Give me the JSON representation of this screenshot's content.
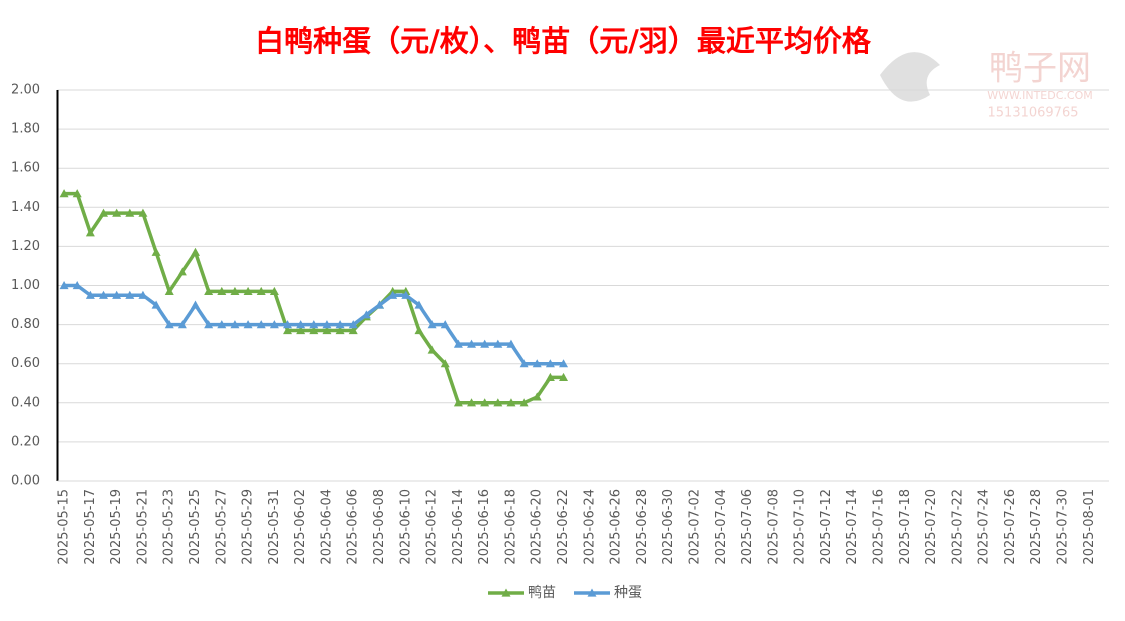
{
  "chart_data": {
    "type": "line",
    "title": "白鸭种蛋（元/枚）、鸭苗（元/羽）最近平均价格",
    "watermark": {
      "name": "鸭子网",
      "site": "WWW.INTEDC.COM",
      "phone": "15131069765"
    },
    "categories": [
      "2025-05-15",
      null,
      "2025-05-17",
      null,
      "2025-05-19",
      null,
      "2025-05-21",
      null,
      "2025-05-23",
      null,
      "2025-05-25",
      null,
      "2025-05-27",
      null,
      "2025-05-29",
      null,
      "2025-05-31",
      null,
      "2025-06-02",
      null,
      "2025-06-04",
      null,
      "2025-06-06",
      null,
      "2025-06-08",
      null,
      "2025-06-10",
      null,
      "2025-06-12",
      null,
      "2025-06-14",
      null,
      "2025-06-16",
      null,
      "2025-06-18",
      null,
      "2025-06-20",
      null,
      "2025-06-22",
      null,
      "2025-06-24",
      null,
      "2025-06-26",
      null,
      "2025-06-28",
      null,
      "2025-06-30",
      null,
      "2025-07-02",
      null,
      "2025-07-04",
      null,
      "2025-07-06",
      null,
      "2025-07-08",
      null,
      "2025-07-10",
      null,
      "2025-07-12",
      null,
      "2025-07-14",
      null,
      "2025-07-16",
      null,
      "2025-07-18",
      null,
      "2025-07-20",
      null,
      "2025-07-22",
      null,
      "2025-07-24",
      null,
      "2025-07-26",
      null,
      "2025-07-28",
      null,
      "2025-07-30",
      null,
      "2025-08-01",
      null
    ],
    "series": [
      {
        "name": "鸭苗",
        "color": "#70ad47",
        "values": [
          1.47,
          1.47,
          1.27,
          1.37,
          1.37,
          1.37,
          1.37,
          1.17,
          0.97,
          1.07,
          1.17,
          0.97,
          0.97,
          0.97,
          0.97,
          0.97,
          0.97,
          0.77,
          0.77,
          0.77,
          0.77,
          0.77,
          0.77,
          0.84,
          0.9,
          0.97,
          0.97,
          0.77,
          0.67,
          0.6,
          0.4,
          0.4,
          0.4,
          0.4,
          0.4,
          0.4,
          0.43,
          0.53,
          0.53,
          null,
          null,
          null,
          null,
          null,
          null,
          null,
          null,
          null,
          null,
          null,
          null,
          null,
          null,
          null,
          null,
          null,
          null,
          null,
          null,
          null,
          null,
          null,
          null,
          null,
          null,
          null,
          null,
          null,
          null,
          null,
          null,
          null,
          null,
          null,
          null,
          null,
          null,
          null,
          null,
          null
        ]
      },
      {
        "name": "种蛋",
        "color": "#5b9bd5",
        "values": [
          1.0,
          1.0,
          0.95,
          0.95,
          0.95,
          0.95,
          0.95,
          0.9,
          0.8,
          0.8,
          0.9,
          0.8,
          0.8,
          0.8,
          0.8,
          0.8,
          0.8,
          0.8,
          0.8,
          0.8,
          0.8,
          0.8,
          0.8,
          0.85,
          0.9,
          0.95,
          0.95,
          0.9,
          0.8,
          0.8,
          0.7,
          0.7,
          0.7,
          0.7,
          0.7,
          0.6,
          0.6,
          0.6,
          0.6,
          null,
          null,
          null,
          null,
          null,
          null,
          null,
          null,
          null,
          null,
          null,
          null,
          null,
          null,
          null,
          null,
          null,
          null,
          null,
          null,
          null,
          null,
          null,
          null,
          null,
          null,
          null,
          null,
          null,
          null,
          null,
          null,
          null,
          null,
          null,
          null,
          null,
          null,
          null,
          null,
          null
        ]
      }
    ],
    "ylim": [
      0,
      2
    ],
    "yticks": [
      {
        "value": 0,
        "label": "0.00"
      },
      {
        "value": 0.2,
        "label": "0.20"
      },
      {
        "value": 0.4,
        "label": "0.40"
      },
      {
        "value": 0.6,
        "label": "0.60"
      },
      {
        "value": 0.8,
        "label": "0.80"
      },
      {
        "value": 1,
        "label": "1.00"
      },
      {
        "value": 1.2,
        "label": "1.20"
      },
      {
        "value": 1.4,
        "label": "1.40"
      },
      {
        "value": 1.6,
        "label": "1.60"
      },
      {
        "value": 1.8,
        "label": "1.80"
      },
      {
        "value": 2,
        "label": "2.00"
      }
    ],
    "grid": true,
    "legend": "bottom"
  }
}
